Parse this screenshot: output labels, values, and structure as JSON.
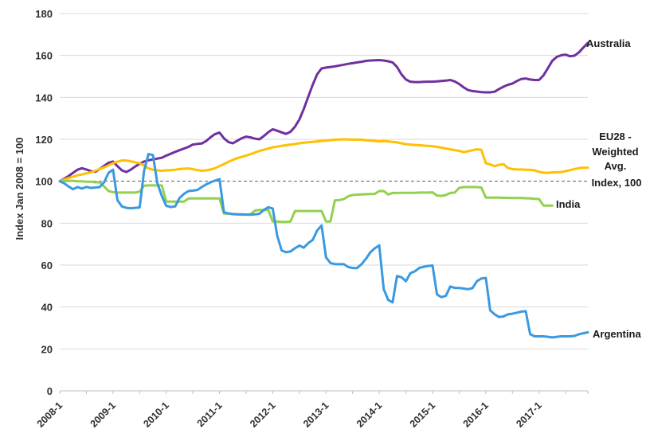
{
  "chart": {
    "y_axis_title": "Index Jan 2008 = 100",
    "y_ticks": [
      0,
      20,
      40,
      60,
      80,
      100,
      120,
      140,
      160,
      180
    ],
    "x_tick_labels": [
      "2008-1",
      "2009-1",
      "2010-1",
      "2011-1",
      "2012-1",
      "2013-1",
      "2014-1",
      "2015-1",
      "2016-1",
      "2017-1"
    ],
    "reference_line": {
      "value": 100,
      "label": "Index, 100",
      "style": "dashed"
    },
    "labels": {
      "australia": "Australia",
      "eu28_line1": "EU28 -",
      "eu28_line2": "Weighted",
      "eu28_line3": "Avg.",
      "index_ref": "Index, 100",
      "india": "India",
      "argentina": "Argentina"
    },
    "colors": {
      "grid": "#d9d9d9",
      "axis_line": "#bfbfbf",
      "axis_text": "#303030",
      "ref_line": "#595959"
    }
  },
  "chart_data": {
    "type": "line",
    "title": "",
    "xlabel": "",
    "ylabel": "Index Jan 2008 = 100",
    "ylim": [
      0,
      180
    ],
    "grid": true,
    "legend_position": "right-annotations",
    "frequency": "monthly",
    "categories": [
      "2008-1",
      "2008-2",
      "2008-3",
      "2008-4",
      "2008-5",
      "2008-6",
      "2008-7",
      "2008-8",
      "2008-9",
      "2008-10",
      "2008-11",
      "2008-12",
      "2009-1",
      "2009-2",
      "2009-3",
      "2009-4",
      "2009-5",
      "2009-6",
      "2009-7",
      "2009-8",
      "2009-9",
      "2009-10",
      "2009-11",
      "2009-12",
      "2010-1",
      "2010-2",
      "2010-3",
      "2010-4",
      "2010-5",
      "2010-6",
      "2010-7",
      "2010-8",
      "2010-9",
      "2010-10",
      "2010-11",
      "2010-12",
      "2011-1",
      "2011-2",
      "2011-3",
      "2011-4",
      "2011-5",
      "2011-6",
      "2011-7",
      "2011-8",
      "2011-9",
      "2011-10",
      "2011-11",
      "2011-12",
      "2012-1",
      "2012-2",
      "2012-3",
      "2012-4",
      "2012-5",
      "2012-6",
      "2012-7",
      "2012-8",
      "2012-9",
      "2012-10",
      "2012-11",
      "2012-12",
      "2013-1",
      "2013-2",
      "2013-3",
      "2013-4",
      "2013-5",
      "2013-6",
      "2013-7",
      "2013-8",
      "2013-9",
      "2013-10",
      "2013-11",
      "2013-12",
      "2014-1",
      "2014-2",
      "2014-3",
      "2014-4",
      "2014-5",
      "2014-6",
      "2014-7",
      "2014-8",
      "2014-9",
      "2014-10",
      "2014-11",
      "2014-12",
      "2015-1",
      "2015-2",
      "2015-3",
      "2015-4",
      "2015-5",
      "2015-6",
      "2015-7",
      "2015-8",
      "2015-9",
      "2015-10",
      "2015-11",
      "2015-12",
      "2016-1",
      "2016-2",
      "2016-3",
      "2016-4",
      "2016-5",
      "2016-6",
      "2016-7",
      "2016-8",
      "2016-9",
      "2016-10",
      "2016-11",
      "2016-12",
      "2017-1",
      "2017-2",
      "2017-3",
      "2017-4",
      "2017-5",
      "2017-6",
      "2017-7",
      "2017-8",
      "2017-9",
      "2017-10",
      "2017-11",
      "2017-12"
    ],
    "series": [
      {
        "name": "Australia",
        "color": "#7030a0",
        "values": [
          100,
          101.2,
          102.5,
          104,
          105.5,
          106.2,
          105.6,
          104.8,
          104.5,
          105.8,
          107.3,
          108.8,
          109.4,
          107.2,
          105.2,
          104.4,
          105.5,
          107,
          108.3,
          109.4,
          110,
          110.4,
          110.8,
          111.2,
          112.2,
          113.1,
          114,
          114.8,
          115.6,
          116.4,
          117.5,
          117.8,
          118,
          119.2,
          121,
          122.5,
          123.2,
          120.5,
          118.7,
          118.1,
          119.3,
          120.5,
          121.3,
          120.9,
          120.3,
          120,
          121.6,
          123.4,
          124.8,
          124.1,
          123.3,
          122.6,
          123.6,
          126,
          129.5,
          134.5,
          140.3,
          146,
          151,
          153.8,
          154.2,
          154.5,
          154.8,
          155.2,
          155.6,
          156,
          156.3,
          156.7,
          157,
          157.4,
          157.6,
          157.7,
          157.8,
          157.6,
          157.2,
          156.7,
          154.5,
          151,
          148.5,
          147.5,
          147.3,
          147.3,
          147.4,
          147.5,
          147.5,
          147.6,
          147.8,
          148,
          148.3,
          147.6,
          146.4,
          144.8,
          143.5,
          143,
          142.8,
          142.5,
          142.4,
          142.4,
          142.7,
          144,
          145.1,
          146,
          146.6,
          147.8,
          148.8,
          149,
          148.5,
          148.3,
          148.3,
          150.5,
          154,
          157.5,
          159.3,
          160.1,
          160.4,
          159.6,
          159.9,
          161.5,
          163.8,
          166
        ]
      },
      {
        "name": "EU28 - Weighted Avg.",
        "color": "#ffc000",
        "values": [
          100,
          100.8,
          101.5,
          102.2,
          102.8,
          103.2,
          103.8,
          104.2,
          105,
          105.8,
          106.6,
          107.6,
          108.6,
          109.3,
          109.9,
          109.9,
          109.5,
          109,
          108.6,
          107.5,
          106.1,
          105.5,
          105.2,
          105,
          105.2,
          105.3,
          105.5,
          105.8,
          106,
          106.1,
          105.8,
          105.3,
          105,
          105.2,
          105.6,
          106.2,
          107.2,
          108.2,
          109.2,
          110.2,
          111,
          111.6,
          112.2,
          112.9,
          113.7,
          114.5,
          115,
          115.6,
          116.2,
          116.5,
          116.9,
          117.2,
          117.5,
          117.8,
          118.1,
          118.4,
          118.6,
          118.8,
          119,
          119.2,
          119.4,
          119.6,
          119.8,
          119.9,
          120,
          119.9,
          119.8,
          119.9,
          119.8,
          119.6,
          119.4,
          119.2,
          119,
          119.2,
          119,
          118.8,
          118.5,
          118.1,
          117.7,
          117.5,
          117.3,
          117.2,
          117,
          116.9,
          116.7,
          116.4,
          116,
          115.6,
          115.2,
          114.8,
          114.5,
          113.9,
          114.3,
          114.8,
          115.2,
          115,
          108.6,
          108,
          107.2,
          107.8,
          108.2,
          106.3,
          105.8,
          105.6,
          105.6,
          105.5,
          105.4,
          105.2,
          104.5,
          104.1,
          104,
          104.2,
          104.3,
          104.4,
          104.8,
          105.3,
          105.8,
          106.2,
          106.5,
          106.4
        ]
      },
      {
        "name": "India",
        "color": "#92d050",
        "values": [
          100,
          100,
          100.2,
          100.2,
          100,
          100,
          99.8,
          99.8,
          99.5,
          99.5,
          97.5,
          95.3,
          94.8,
          94.6,
          94.6,
          94.6,
          94.6,
          94.6,
          95,
          97.9,
          98,
          98,
          98,
          98,
          90.3,
          90.3,
          90.3,
          90.3,
          90.3,
          91.8,
          91.8,
          91.8,
          91.8,
          91.8,
          91.8,
          91.8,
          91.8,
          84.6,
          84.6,
          84.4,
          84.2,
          84,
          84,
          84.3,
          86,
          86.3,
          86.3,
          86.3,
          80.8,
          80.8,
          80.6,
          80.6,
          80.8,
          85.8,
          85.8,
          85.8,
          85.8,
          85.8,
          85.8,
          85.8,
          80.8,
          80.8,
          90.9,
          91,
          91.5,
          92.8,
          93.4,
          93.6,
          93.7,
          93.8,
          93.9,
          94,
          95.3,
          95.3,
          93.7,
          94.4,
          94.4,
          94.5,
          94.5,
          94.5,
          94.5,
          94.6,
          94.6,
          94.6,
          94.7,
          93.2,
          93,
          93.4,
          94.4,
          94.6,
          96.8,
          97.2,
          97.2,
          97.2,
          97.2,
          97,
          92.2,
          92.2,
          92.2,
          92.2,
          92.1,
          92.1,
          92,
          92,
          92,
          91.9,
          91.8,
          91.6,
          91.5,
          88.4,
          88.4,
          88.4,
          null,
          null,
          null,
          null,
          null,
          null,
          null,
          null
        ]
      },
      {
        "name": "Argentina",
        "color": "#3a99e0",
        "values": [
          100,
          99,
          97.5,
          96.2,
          97.2,
          96.5,
          97.3,
          96.8,
          97,
          97.2,
          99.5,
          104,
          105.5,
          91,
          88,
          87.3,
          87.1,
          87.3,
          87.5,
          105,
          113,
          112.5,
          99,
          93,
          88.3,
          87.7,
          88,
          92,
          94,
          95.3,
          95.5,
          95.8,
          97.2,
          98.5,
          99.5,
          100.3,
          101,
          85.2,
          84.6,
          84.3,
          84.2,
          84.2,
          84.1,
          84,
          84.2,
          84.5,
          86.3,
          87.6,
          87,
          74,
          67,
          66.1,
          66.5,
          68,
          69.3,
          68.3,
          70.5,
          72,
          76.5,
          78.9,
          63.7,
          61,
          60.5,
          60.4,
          60.4,
          59.1,
          58.6,
          58.6,
          60.4,
          63,
          66.1,
          68,
          69.4,
          48.6,
          43.4,
          42.2,
          54.8,
          54.2,
          52.3,
          56.1,
          57,
          58.6,
          59.2,
          59.6,
          59.8,
          46,
          44.7,
          45.3,
          49.8,
          49.1,
          49.1,
          48.8,
          48.5,
          49,
          52.3,
          53.6,
          53.9,
          38.4,
          36.5,
          35.2,
          35.5,
          36.5,
          36.8,
          37.3,
          37.8,
          38,
          27,
          26,
          26,
          26,
          25.8,
          25.5,
          25.8,
          26,
          26,
          26,
          26.2,
          27,
          27.5,
          27.9
        ]
      }
    ]
  }
}
